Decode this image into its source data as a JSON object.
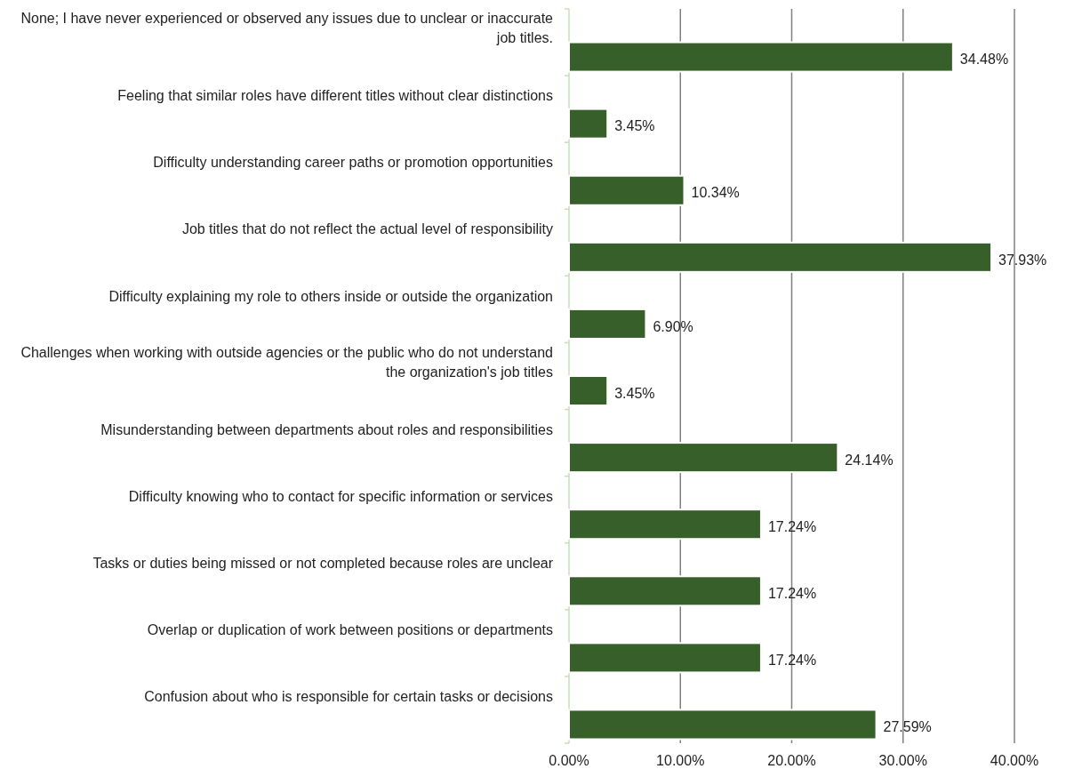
{
  "chart_data": {
    "type": "bar",
    "orientation": "horizontal",
    "categories": [
      "None; I have never experienced or observed any issues due to unclear or inaccurate job titles.",
      "Feeling that similar roles have different titles without clear distinctions",
      "Difficulty understanding career paths or promotion opportunities",
      "Job titles that do not reflect the actual level of responsibility",
      "Difficulty explaining my role to others inside or outside the organization",
      "Challenges when working with outside agencies or the public who do not understand the organization's job titles",
      "Misunderstanding between departments about roles and responsibilities",
      "Difficulty knowing who to contact for specific information or services",
      "Tasks or duties being missed or not completed because roles are unclear",
      "Overlap or duplication of work between positions or departments",
      "Confusion about who is responsible for certain tasks or decisions"
    ],
    "values": [
      34.48,
      3.45,
      10.34,
      37.93,
      6.9,
      3.45,
      24.14,
      17.24,
      17.24,
      17.24,
      27.59
    ],
    "value_labels": [
      "34.48%",
      "3.45%",
      "10.34%",
      "37.93%",
      "6.90%",
      "3.45%",
      "24.14%",
      "17.24%",
      "17.24%",
      "17.24%",
      "27.59%"
    ],
    "color": "#375f2a",
    "xlim": [
      0,
      40
    ],
    "xticks": [
      {
        "value": 0,
        "label": "0.00%"
      },
      {
        "value": 10,
        "label": "10.00%"
      },
      {
        "value": 20,
        "label": "20.00%"
      },
      {
        "value": 30,
        "label": "30.00%"
      },
      {
        "value": 40,
        "label": "40.00%"
      }
    ],
    "grid": "x"
  }
}
